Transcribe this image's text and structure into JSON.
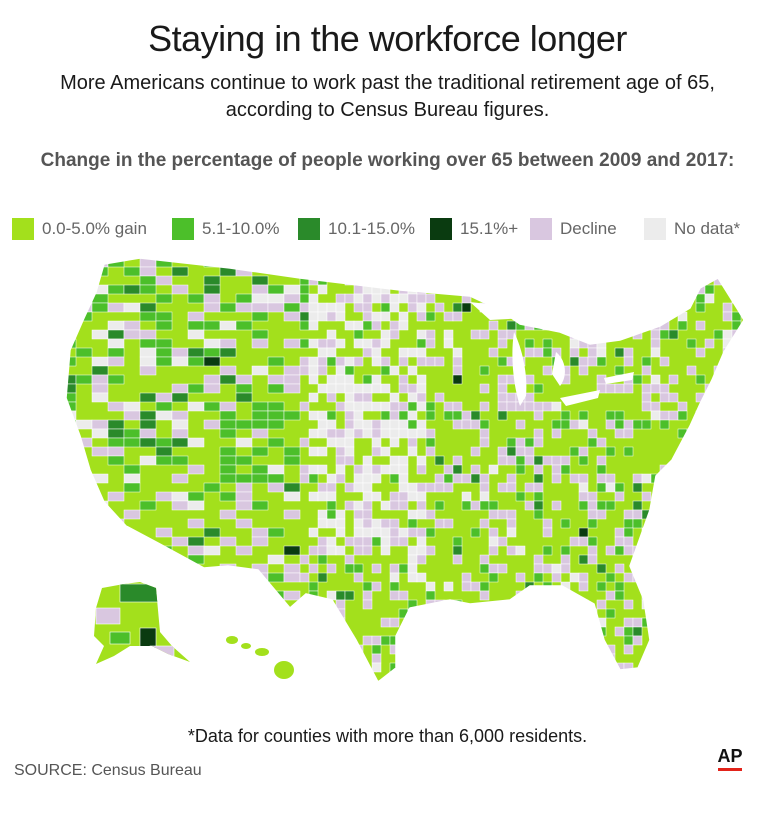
{
  "title": "Staying in the workforce longer",
  "subtitle": "More Americans continue to work past the traditional retirement age of 65, according to Census Bureau figures.",
  "heading": "Change in the percentage of people working over 65 between 2009 and 2017:",
  "legend": [
    {
      "label": "0.0-5.0% gain",
      "color": "#a3e01c"
    },
    {
      "label": "5.1-10.0%",
      "color": "#4cbf2a"
    },
    {
      "label": "10.1-15.0%",
      "color": "#2a8a2a"
    },
    {
      "label": "15.1%+",
      "color": "#0a3b10"
    },
    {
      "label": "Decline",
      "color": "#d9c7e0"
    },
    {
      "label": "No data*",
      "color": "#ececec"
    }
  ],
  "footnote": "*Data for counties with more than 6,000 residents.",
  "source": "SOURCE: Census Bureau",
  "logo_text": "AP",
  "colors": {
    "accent_red": "#e2231a",
    "border": "#ffffff"
  }
}
